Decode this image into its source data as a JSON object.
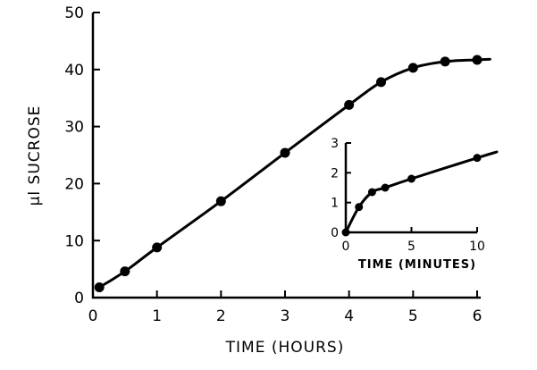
{
  "chart_data": [
    {
      "type": "line",
      "title": "",
      "xlabel": "TIME (HOURS)",
      "ylabel": "μl SUCROSE",
      "xlim": [
        0,
        6
      ],
      "ylim": [
        0,
        50
      ],
      "xticks": [
        "0",
        "1",
        "2",
        "3",
        "4",
        "5",
        "6"
      ],
      "yticks": [
        "0",
        "10",
        "20",
        "30",
        "40",
        "50"
      ],
      "grid": false,
      "series": [
        {
          "x": [
            0.1,
            0.5,
            1.0,
            2.0,
            3.0,
            4.0,
            4.5,
            5.0,
            5.5,
            6.0
          ],
          "values": [
            1.8,
            4.6,
            8.8,
            16.9,
            25.4,
            33.8,
            37.8,
            40.3,
            41.4,
            41.7
          ]
        }
      ],
      "curve_end": {
        "x": 6.2,
        "y": 41.8
      }
    },
    {
      "type": "line",
      "title": "",
      "xlabel": "TIME (MINUTES)",
      "ylabel": "",
      "xlim": [
        0,
        10
      ],
      "ylim": [
        0,
        3
      ],
      "xticks": [
        "0",
        "5",
        "10"
      ],
      "yticks": [
        "0",
        "1",
        "2",
        "3"
      ],
      "grid": false,
      "series": [
        {
          "x": [
            0,
            1,
            2,
            3,
            5,
            10
          ],
          "values": [
            0,
            0.85,
            1.35,
            1.5,
            1.8,
            2.5
          ]
        }
      ],
      "curve_end": {
        "x": 11.5,
        "y": 2.7
      }
    }
  ]
}
